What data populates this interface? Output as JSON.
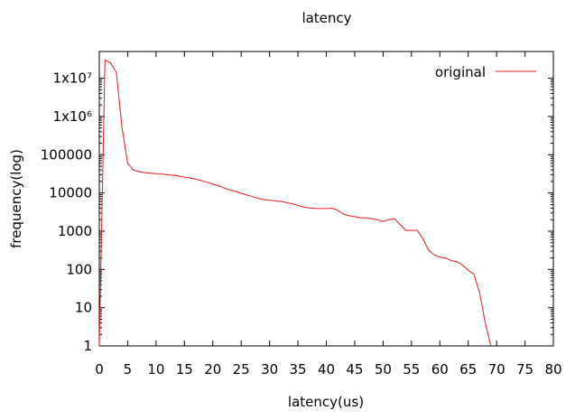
{
  "chart_data": {
    "type": "line",
    "title": "latency",
    "xlabel": "latency(us)",
    "ylabel": "frequency(log)",
    "xlim": [
      0,
      80
    ],
    "ylim": [
      1,
      50000000
    ],
    "yscale": "log",
    "grid": false,
    "legend_position": "top-right",
    "x_ticks": [
      0,
      5,
      10,
      15,
      20,
      25,
      30,
      35,
      40,
      45,
      50,
      55,
      60,
      65,
      70,
      75,
      80
    ],
    "x_tick_labels": [
      "0",
      "5",
      "10",
      "15",
      "20",
      "25",
      "30",
      "35",
      "40",
      "45",
      "50",
      "55",
      "60",
      "65",
      "70",
      "75",
      "80"
    ],
    "y_ticks": [
      1,
      10,
      100,
      1000,
      10000,
      100000,
      1000000,
      10000000
    ],
    "y_tick_labels": [
      "1",
      "10",
      "100",
      "1000",
      "10000",
      "100000",
      "1x10⁶",
      "1x10⁷"
    ],
    "series": [
      {
        "name": "original",
        "color": "#e41a1c",
        "x": [
          0,
          1,
          2,
          3,
          4,
          5,
          6,
          7,
          8,
          9,
          10,
          11,
          12,
          13,
          14,
          15,
          16,
          17,
          18,
          19,
          20,
          21,
          22,
          23,
          24,
          25,
          26,
          27,
          28,
          29,
          30,
          31,
          32,
          33,
          34,
          35,
          36,
          37,
          38,
          39,
          40,
          41,
          42,
          43,
          44,
          45,
          46,
          47,
          48,
          49,
          50,
          51,
          52,
          53,
          54,
          55,
          56,
          57,
          58,
          59,
          60,
          61,
          62,
          63,
          64,
          65,
          66,
          67,
          68,
          69
        ],
        "y": [
          1,
          30000000,
          25000000,
          14000000,
          500000,
          60000,
          40000,
          36000,
          34000,
          33000,
          32000,
          31500,
          30000,
          29000,
          27500,
          26000,
          24500,
          23000,
          21000,
          19000,
          17000,
          15500,
          13500,
          12000,
          11000,
          9800,
          8800,
          8000,
          7200,
          6700,
          6400,
          6200,
          6000,
          5600,
          5200,
          4700,
          4300,
          4050,
          3950,
          3900,
          3900,
          4000,
          3500,
          2800,
          2550,
          2400,
          2250,
          2250,
          2100,
          2000,
          1800,
          2000,
          2100,
          1500,
          1050,
          1050,
          1050,
          650,
          320,
          240,
          210,
          200,
          170,
          160,
          130,
          95,
          75,
          25,
          4,
          1
        ]
      }
    ]
  }
}
